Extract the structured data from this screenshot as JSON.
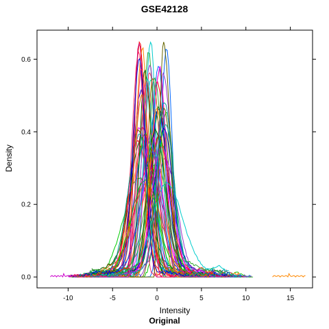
{
  "chart_data": {
    "type": "line",
    "title": "GSE42128",
    "xlabel": "Intensity",
    "ylabel": "Density",
    "subtitle": "Original",
    "xlim": [
      -13.5,
      17.5
    ],
    "ylim": [
      -0.03,
      0.68
    ],
    "x_ticks": [
      -10,
      -5,
      0,
      5,
      10,
      15
    ],
    "y_ticks": [
      0.0,
      0.2,
      0.4,
      0.6
    ],
    "x_tick_labels": [
      "-10",
      "-5",
      "0",
      "5",
      "10",
      "15"
    ],
    "y_tick_labels": [
      "0.0",
      "0.2",
      "0.4",
      "0.6"
    ],
    "grid": false,
    "legend": "none",
    "series_count": 60,
    "series_colors": [
      "#ff0000",
      "#00cc00",
      "#0066ff",
      "#ff00ff",
      "#ff8800",
      "#006600",
      "#00cccc",
      "#cc0066",
      "#666600",
      "#0000cc",
      "#ff3366",
      "#33aa33",
      "#9933cc",
      "#cc6600",
      "#009999"
    ],
    "series_shape": {
      "peak_x_range": [
        -2.2,
        1.2
      ],
      "peak_density_range": [
        0.24,
        0.64
      ],
      "min_x": -12,
      "max_x": 16.7
    }
  }
}
